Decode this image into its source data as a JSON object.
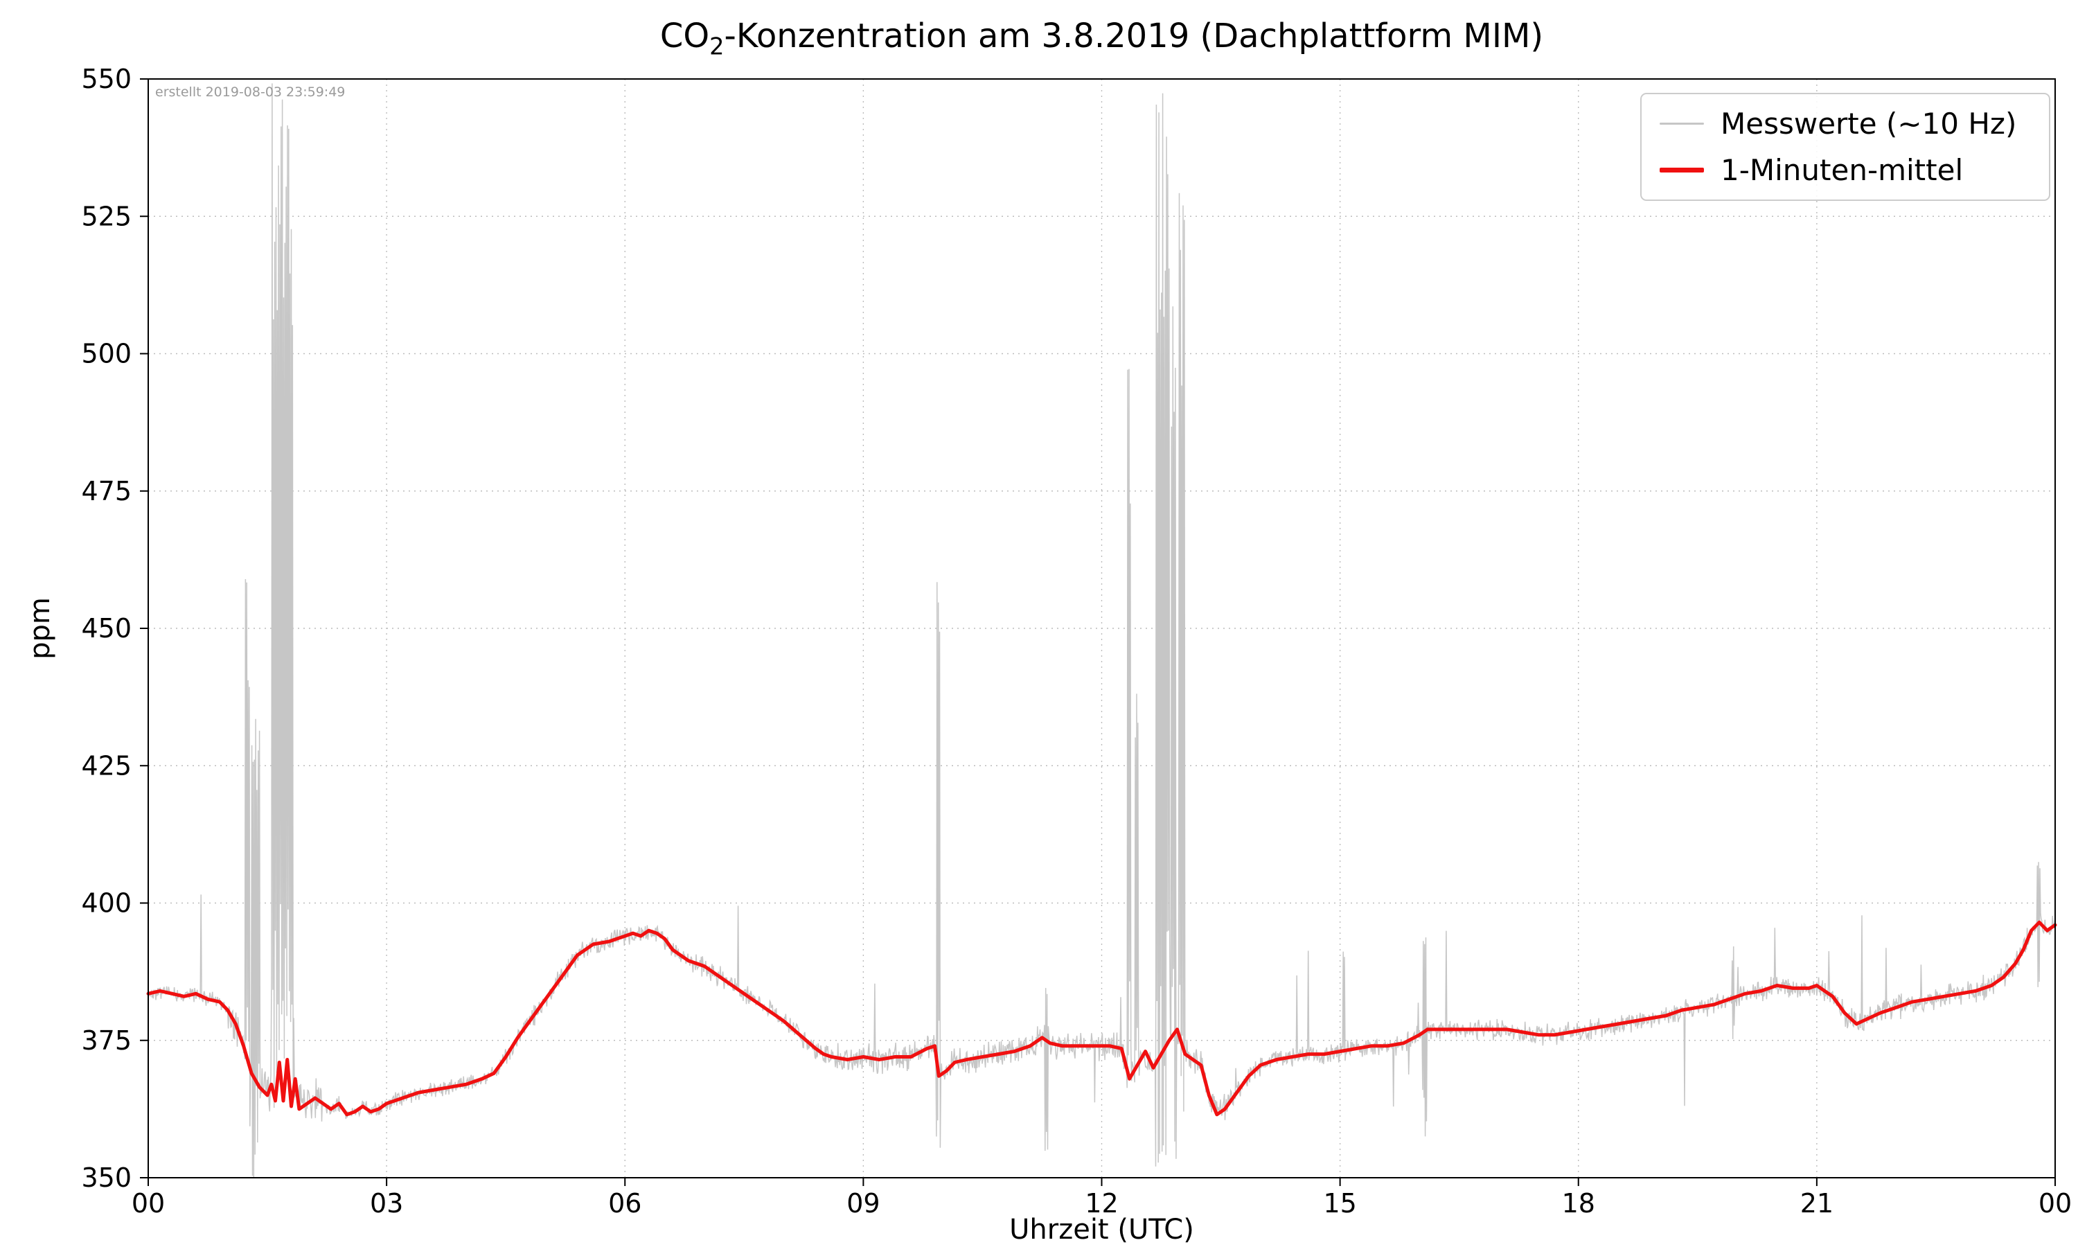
{
  "chart_data": {
    "type": "line",
    "title": "CO2-Konzentration am 3.8.2019 (Dachplattform MIM)",
    "title_parts": {
      "prefix": "CO",
      "sub": "2",
      "rest": "-Konzentration am 3.8.2019 (Dachplattform MIM)"
    },
    "xlabel": "Uhrzeit (UTC)",
    "ylabel": "ppm",
    "annotation": "erstellt 2019-08-03 23:59:49",
    "xlim": [
      0,
      24
    ],
    "ylim": [
      350,
      550
    ],
    "x_ticks": [
      0,
      3,
      6,
      9,
      12,
      15,
      18,
      21,
      24
    ],
    "x_tick_labels": [
      "00",
      "03",
      "06",
      "09",
      "12",
      "15",
      "18",
      "21",
      "00"
    ],
    "y_ticks": [
      350,
      375,
      400,
      425,
      450,
      475,
      500,
      525,
      550
    ],
    "grid": true,
    "legend_position": "upper right",
    "legend": [
      {
        "label": "Messwerte (~10 Hz)",
        "color": "#c6c6c6"
      },
      {
        "label": "1-Minuten-mittel",
        "color": "#f01010"
      }
    ],
    "series": [
      {
        "name": "1-Minuten-mittel",
        "color": "#f01010",
        "x": [
          0,
          0.15,
          0.3,
          0.45,
          0.6,
          0.75,
          0.9,
          1.0,
          1.1,
          1.2,
          1.3,
          1.4,
          1.5,
          1.55,
          1.6,
          1.65,
          1.7,
          1.75,
          1.8,
          1.85,
          1.9,
          2.0,
          2.1,
          2.2,
          2.3,
          2.4,
          2.5,
          2.6,
          2.7,
          2.8,
          2.9,
          3.0,
          3.2,
          3.4,
          3.6,
          3.8,
          4.0,
          4.2,
          4.35,
          4.5,
          4.65,
          4.8,
          5.0,
          5.2,
          5.4,
          5.6,
          5.8,
          6.0,
          6.1,
          6.2,
          6.3,
          6.4,
          6.5,
          6.6,
          6.8,
          7.0,
          7.2,
          7.4,
          7.6,
          7.8,
          8.0,
          8.2,
          8.4,
          8.5,
          8.6,
          8.8,
          9.0,
          9.2,
          9.4,
          9.6,
          9.8,
          9.9,
          9.95,
          10.05,
          10.15,
          10.3,
          10.5,
          10.7,
          10.9,
          11.1,
          11.25,
          11.35,
          11.5,
          11.7,
          11.9,
          12.1,
          12.25,
          12.35,
          12.45,
          12.55,
          12.65,
          12.75,
          12.85,
          12.95,
          13.05,
          13.15,
          13.25,
          13.35,
          13.45,
          13.55,
          13.7,
          13.85,
          14.0,
          14.2,
          14.4,
          14.6,
          14.8,
          15.0,
          15.2,
          15.4,
          15.6,
          15.8,
          16.0,
          16.1,
          16.3,
          16.5,
          16.7,
          16.9,
          17.1,
          17.3,
          17.5,
          17.7,
          17.9,
          18.1,
          18.3,
          18.5,
          18.7,
          18.9,
          19.1,
          19.3,
          19.5,
          19.7,
          19.9,
          20.1,
          20.3,
          20.5,
          20.7,
          20.9,
          21.0,
          21.1,
          21.2,
          21.35,
          21.5,
          21.65,
          21.8,
          22.0,
          22.2,
          22.4,
          22.6,
          22.8,
          23.0,
          23.2,
          23.35,
          23.5,
          23.6,
          23.7,
          23.8,
          23.9,
          24.0
        ],
        "y": [
          383.5,
          384,
          383.5,
          383,
          383.5,
          382.5,
          382,
          380.5,
          378,
          374,
          369,
          366.5,
          365,
          367,
          364,
          371,
          364,
          371.5,
          363,
          368,
          362.5,
          363.5,
          364.5,
          363.5,
          362.5,
          363.5,
          361.5,
          362,
          363,
          362,
          362.5,
          363.5,
          364.5,
          365.5,
          366,
          366.5,
          367,
          368,
          369,
          372,
          375.5,
          378.5,
          382.5,
          386.5,
          390.5,
          392.5,
          393,
          394,
          394.5,
          394,
          395,
          394.5,
          393.5,
          391.5,
          389.5,
          388.5,
          386.5,
          384.5,
          382.5,
          380.5,
          378.5,
          376,
          373.5,
          372.5,
          372,
          371.5,
          372,
          371.5,
          372,
          372,
          373.5,
          374,
          368.5,
          369.5,
          371,
          371.5,
          372,
          372.5,
          373,
          374,
          375.5,
          374.5,
          374,
          374,
          374,
          374,
          373.5,
          368,
          370.5,
          373,
          370,
          372.5,
          375,
          377,
          372.5,
          371.5,
          370.5,
          365,
          361.5,
          362.5,
          365.5,
          368.5,
          370.5,
          371.5,
          372,
          372.5,
          372.5,
          373,
          373.5,
          374,
          374,
          374.5,
          376,
          377,
          377,
          377,
          377,
          377,
          377,
          376.5,
          376,
          376,
          376.5,
          377,
          377.5,
          378,
          378.5,
          379,
          379.5,
          380.5,
          381,
          381.5,
          382.5,
          383.5,
          384,
          385,
          384.5,
          384.5,
          385,
          384,
          383,
          380,
          378,
          379,
          380,
          381,
          382,
          382.5,
          383,
          383.5,
          384,
          385,
          386.5,
          389,
          391.5,
          395,
          396.5,
          395,
          396
        ]
      }
    ],
    "raw": {
      "name": "Messwerte (~10 Hz)",
      "color": "#c6c6c6",
      "noise_ppm": 2.2,
      "bursts": [
        {
          "x0": 1.22,
          "x1": 1.28,
          "lo": 358,
          "hi": 460
        },
        {
          "x0": 1.3,
          "x1": 1.4,
          "lo": 350,
          "hi": 442
        },
        {
          "x0": 1.55,
          "x1": 1.82,
          "lo": 350,
          "hi": 550
        },
        {
          "x0": 9.92,
          "x1": 9.97,
          "lo": 350,
          "hi": 466
        },
        {
          "x0": 11.28,
          "x1": 11.33,
          "lo": 352,
          "hi": 386
        },
        {
          "x0": 12.32,
          "x1": 12.37,
          "lo": 356,
          "hi": 498
        },
        {
          "x0": 12.42,
          "x1": 12.46,
          "lo": 362,
          "hi": 447
        },
        {
          "x0": 12.68,
          "x1": 12.86,
          "lo": 350,
          "hi": 550
        },
        {
          "x0": 12.88,
          "x1": 12.94,
          "lo": 350,
          "hi": 523
        },
        {
          "x0": 12.97,
          "x1": 13.04,
          "lo": 352,
          "hi": 534
        },
        {
          "x0": 15.03,
          "x1": 15.06,
          "lo": 368,
          "hi": 396
        },
        {
          "x0": 16.04,
          "x1": 16.09,
          "lo": 357,
          "hi": 394
        },
        {
          "x0": 19.93,
          "x1": 19.96,
          "lo": 375,
          "hi": 394
        },
        {
          "x0": 23.77,
          "x1": 23.81,
          "lo": 384,
          "hi": 410
        }
      ]
    }
  }
}
